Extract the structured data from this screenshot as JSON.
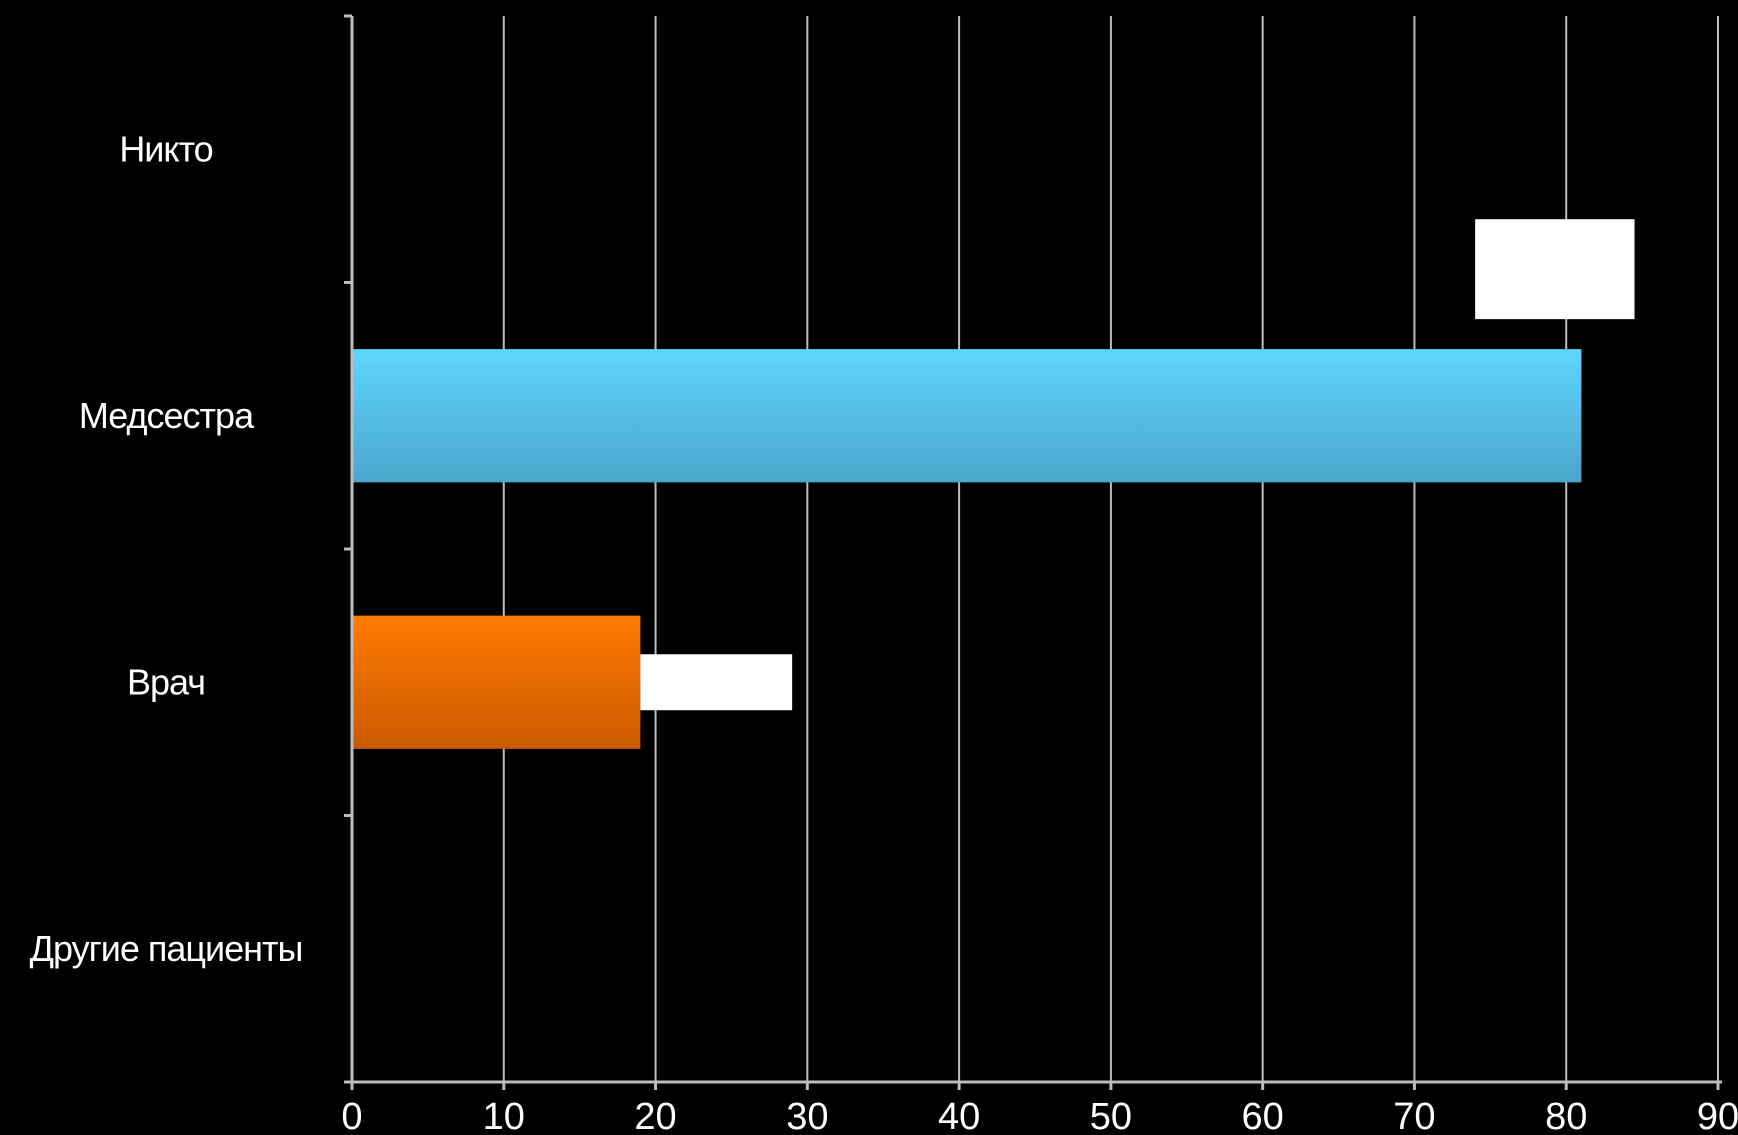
{
  "chart_data": {
    "type": "bar",
    "orientation": "horizontal",
    "categories": [
      "Никто",
      "Медсестра",
      "Врач",
      "Другие пациенты"
    ],
    "series": [
      {
        "values": [
          0,
          81,
          19,
          0
        ],
        "colors": [
          "#ff7f0e",
          "#5bcbf5",
          "#ff7a00",
          "#ff7f0e"
        ]
      }
    ],
    "xlim": [
      0,
      90
    ],
    "xticks": [
      "0",
      "10",
      "20",
      "30",
      "40",
      "50",
      "60",
      "70",
      "80",
      "90"
    ],
    "grid": true,
    "background": "#000000",
    "text_color": "#ffffff",
    "grid_color": "#bdbdbd",
    "blank_boxes": [
      {
        "category": "Никто",
        "from": 74,
        "to": 84.5
      },
      {
        "category": "Врач",
        "from": 19,
        "to": 29
      }
    ]
  }
}
